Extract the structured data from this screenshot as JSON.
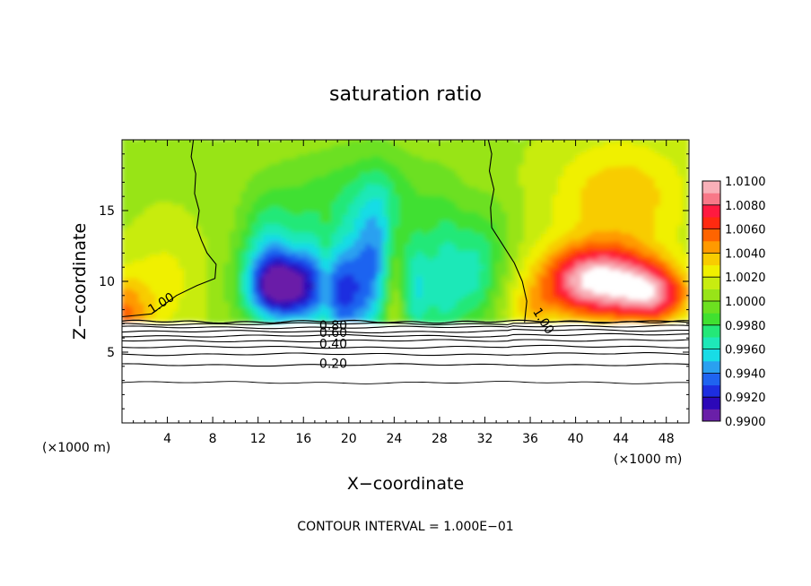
{
  "chart_data": {
    "type": "heatmap",
    "title": "saturation ratio",
    "xlabel": "X−coordinate",
    "ylabel": "Z−coordinate",
    "x_unit_left": "(×1000 m)",
    "x_unit_right": "(×1000 m)",
    "xlim": [
      0,
      50
    ],
    "ylim": [
      0,
      20
    ],
    "x_ticks": [
      4,
      8,
      12,
      16,
      20,
      24,
      28,
      32,
      36,
      40,
      44,
      48
    ],
    "y_ticks": [
      5,
      10,
      15
    ],
    "colorbar": {
      "levels": [
        0.99,
        0.991,
        0.992,
        0.993,
        0.994,
        0.995,
        0.996,
        0.997,
        0.998,
        0.999,
        1.0,
        1.001,
        1.002,
        1.003,
        1.004,
        1.005,
        1.006,
        1.007,
        1.008,
        1.009,
        1.01
      ],
      "labels": [
        "1.0100",
        "1.0080",
        "1.0060",
        "1.0040",
        "1.0020",
        "1.0000",
        "0.9980",
        "0.9960",
        "0.9940",
        "0.9920",
        "0.9900"
      ],
      "colors": [
        "#6a1fa8",
        "#2c08b8",
        "#1d2ee0",
        "#1f64f0",
        "#2aa0f0",
        "#18dce6",
        "#1ee8b8",
        "#24e878",
        "#40e030",
        "#6ce020",
        "#98e418",
        "#c8ec10",
        "#f0f000",
        "#f8cc00",
        "#ff9a00",
        "#ff6400",
        "#ff2a10",
        "#ff1a40",
        "#f87888",
        "#f8b0b8"
      ]
    },
    "contour_labels": [
      {
        "text": "1.00",
        "x": 2.6,
        "y": 8.0
      },
      {
        "text": "1.00",
        "x": 36.2,
        "y": 8.2
      },
      {
        "text": "0.80",
        "x": 17.4,
        "y": 6.9
      },
      {
        "text": "0.60",
        "x": 17.4,
        "y": 6.4
      },
      {
        "text": "0.40",
        "x": 17.4,
        "y": 5.6
      },
      {
        "text": "0.20",
        "x": 17.4,
        "y": 4.2
      }
    ],
    "contour_interval_text": "CONTOUR INTERVAL = 1.000E−01"
  }
}
